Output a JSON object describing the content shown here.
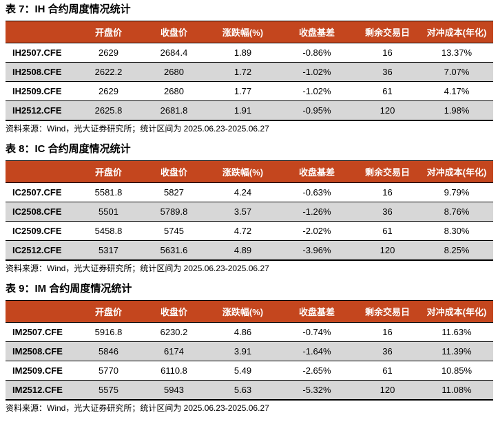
{
  "colors": {
    "header_bg": "#C4461E",
    "header_fg": "#FFFFFF",
    "row_alt_bg": "#D7D7D7",
    "rule": "#000000"
  },
  "tables": [
    {
      "title": "表 7：IH 合约周度情况统计",
      "columns": [
        "",
        "开盘价",
        "收盘价",
        "涨跌幅(%)",
        "收盘基差",
        "剩余交易日",
        "对冲成本(年化)"
      ],
      "rows": [
        [
          "IH2507.CFE",
          "2629",
          "2684.4",
          "1.89",
          "-0.86%",
          "16",
          "13.37%"
        ],
        [
          "IH2508.CFE",
          "2622.2",
          "2680",
          "1.72",
          "-1.02%",
          "36",
          "7.07%"
        ],
        [
          "IH2509.CFE",
          "2629",
          "2680",
          "1.77",
          "-1.02%",
          "61",
          "4.17%"
        ],
        [
          "IH2512.CFE",
          "2625.8",
          "2681.8",
          "1.91",
          "-0.95%",
          "120",
          "1.98%"
        ]
      ],
      "source": "资料来源：Wind，光大证券研究所；统计区间为 2025.06.23-2025.06.27"
    },
    {
      "title": "表 8：IC 合约周度情况统计",
      "columns": [
        "",
        "开盘价",
        "收盘价",
        "涨跌幅(%)",
        "收盘基差",
        "剩余交易日",
        "对冲成本(年化)"
      ],
      "rows": [
        [
          "IC2507.CFE",
          "5581.8",
          "5827",
          "4.24",
          "-0.63%",
          "16",
          "9.79%"
        ],
        [
          "IC2508.CFE",
          "5501",
          "5789.8",
          "3.57",
          "-1.26%",
          "36",
          "8.76%"
        ],
        [
          "IC2509.CFE",
          "5458.8",
          "5745",
          "4.72",
          "-2.02%",
          "61",
          "8.30%"
        ],
        [
          "IC2512.CFE",
          "5317",
          "5631.6",
          "4.89",
          "-3.96%",
          "120",
          "8.25%"
        ]
      ],
      "source": "资料来源：Wind，光大证券研究所；统计区间为 2025.06.23-2025.06.27"
    },
    {
      "title": "表 9：IM 合约周度情况统计",
      "columns": [
        "",
        "开盘价",
        "收盘价",
        "涨跌幅(%)",
        "收盘基差",
        "剩余交易日",
        "对冲成本(年化)"
      ],
      "rows": [
        [
          "IM2507.CFE",
          "5916.8",
          "6230.2",
          "4.86",
          "-0.74%",
          "16",
          "11.63%"
        ],
        [
          "IM2508.CFE",
          "5846",
          "6174",
          "3.91",
          "-1.64%",
          "36",
          "11.39%"
        ],
        [
          "IM2509.CFE",
          "5770",
          "6110.8",
          "5.49",
          "-2.65%",
          "61",
          "10.85%"
        ],
        [
          "IM2512.CFE",
          "5575",
          "5943",
          "5.63",
          "-5.32%",
          "120",
          "11.08%"
        ]
      ],
      "source": "资料来源：Wind，光大证券研究所；统计区间为 2025.06.23-2025.06.27"
    }
  ]
}
